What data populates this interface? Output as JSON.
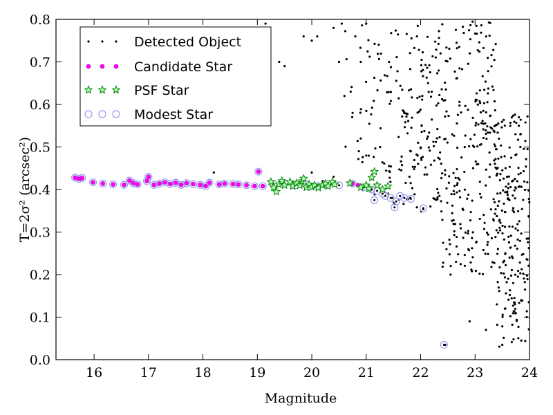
{
  "chart_data": {
    "type": "scatter",
    "xlabel": "Magnitude",
    "ylabel": "T=2σ² (arcsec²)",
    "xlim": [
      15.3,
      24
    ],
    "ylim": [
      0.0,
      0.8
    ],
    "xticks": [
      16,
      17,
      18,
      19,
      20,
      21,
      22,
      23,
      24
    ],
    "yticks": [
      0.0,
      0.1,
      0.2,
      0.3,
      0.4,
      0.5,
      0.6,
      0.7,
      0.8
    ],
    "xtick_labels": [
      "16",
      "17",
      "18",
      "19",
      "20",
      "21",
      "22",
      "23",
      "24"
    ],
    "ytick_labels": [
      "0.0",
      "0.1",
      "0.2",
      "0.3",
      "0.4",
      "0.5",
      "0.6",
      "0.7",
      "0.8"
    ],
    "legend": {
      "position": "top-left",
      "entries": [
        {
          "label": "Detected Object",
          "marker": "dot",
          "color": "#000000"
        },
        {
          "label": "Candidate Star",
          "marker": "circle",
          "color": "#ff00ff"
        },
        {
          "label": "PSF Star",
          "marker": "star",
          "color": "#008000"
        },
        {
          "label": "Modest Star",
          "marker": "hollow-circle",
          "color": "#9999ee"
        }
      ]
    },
    "series": [
      {
        "name": "Modest Star",
        "color": "#9999ee",
        "points": [
          [
            15.65,
            0.428
          ],
          [
            15.72,
            0.425
          ],
          [
            15.78,
            0.427
          ],
          [
            15.98,
            0.417
          ],
          [
            16.16,
            0.414
          ],
          [
            16.35,
            0.412
          ],
          [
            16.55,
            0.411
          ],
          [
            16.65,
            0.421
          ],
          [
            16.72,
            0.415
          ],
          [
            16.8,
            0.412
          ],
          [
            16.97,
            0.42
          ],
          [
            17.0,
            0.43
          ],
          [
            17.1,
            0.411
          ],
          [
            17.2,
            0.414
          ],
          [
            17.3,
            0.417
          ],
          [
            17.4,
            0.413
          ],
          [
            17.5,
            0.416
          ],
          [
            17.6,
            0.411
          ],
          [
            17.7,
            0.415
          ],
          [
            17.82,
            0.413
          ],
          [
            17.95,
            0.411
          ],
          [
            18.05,
            0.408
          ],
          [
            18.12,
            0.416
          ],
          [
            18.3,
            0.412
          ],
          [
            18.4,
            0.414
          ],
          [
            18.55,
            0.413
          ],
          [
            18.65,
            0.412
          ],
          [
            18.8,
            0.41
          ],
          [
            18.95,
            0.408
          ],
          [
            19.02,
            0.442
          ],
          [
            19.1,
            0.408
          ],
          [
            19.3,
            0.413
          ],
          [
            19.5,
            0.415
          ],
          [
            19.7,
            0.41
          ],
          [
            19.9,
            0.412
          ],
          [
            20.1,
            0.408
          ],
          [
            20.3,
            0.413
          ],
          [
            20.5,
            0.41
          ],
          [
            20.75,
            0.414
          ],
          [
            20.95,
            0.405
          ],
          [
            21.1,
            0.4
          ],
          [
            21.2,
            0.397
          ],
          [
            21.3,
            0.39
          ],
          [
            21.35,
            0.385
          ],
          [
            21.45,
            0.38
          ],
          [
            21.55,
            0.372
          ],
          [
            21.62,
            0.385
          ],
          [
            21.7,
            0.38
          ],
          [
            21.15,
            0.375
          ],
          [
            21.52,
            0.358
          ],
          [
            21.82,
            0.378
          ],
          [
            22.05,
            0.356
          ],
          [
            22.43,
            0.035
          ]
        ]
      },
      {
        "name": "Candidate Star",
        "color": "#ff00ff",
        "points": [
          [
            15.65,
            0.428
          ],
          [
            15.72,
            0.425
          ],
          [
            15.78,
            0.427
          ],
          [
            15.98,
            0.417
          ],
          [
            16.16,
            0.414
          ],
          [
            16.35,
            0.412
          ],
          [
            16.55,
            0.411
          ],
          [
            16.65,
            0.421
          ],
          [
            16.72,
            0.415
          ],
          [
            16.8,
            0.412
          ],
          [
            16.97,
            0.42
          ],
          [
            17.0,
            0.43
          ],
          [
            17.1,
            0.411
          ],
          [
            17.2,
            0.414
          ],
          [
            17.3,
            0.417
          ],
          [
            17.4,
            0.413
          ],
          [
            17.5,
            0.416
          ],
          [
            17.6,
            0.411
          ],
          [
            17.7,
            0.415
          ],
          [
            17.82,
            0.413
          ],
          [
            17.95,
            0.411
          ],
          [
            18.05,
            0.408
          ],
          [
            18.12,
            0.416
          ],
          [
            18.3,
            0.412
          ],
          [
            18.4,
            0.414
          ],
          [
            18.55,
            0.413
          ],
          [
            18.65,
            0.412
          ],
          [
            18.8,
            0.41
          ],
          [
            18.95,
            0.408
          ],
          [
            19.02,
            0.442
          ],
          [
            19.1,
            0.408
          ],
          [
            20.75,
            0.414
          ],
          [
            20.85,
            0.41
          ]
        ]
      },
      {
        "name": "PSF Star",
        "color": "#008000",
        "points": [
          [
            19.25,
            0.418
          ],
          [
            19.3,
            0.405
          ],
          [
            19.35,
            0.395
          ],
          [
            19.4,
            0.412
          ],
          [
            19.45,
            0.42
          ],
          [
            19.5,
            0.41
          ],
          [
            19.6,
            0.418
          ],
          [
            19.65,
            0.408
          ],
          [
            19.72,
            0.415
          ],
          [
            19.78,
            0.41
          ],
          [
            19.82,
            0.42
          ],
          [
            19.85,
            0.426
          ],
          [
            19.9,
            0.405
          ],
          [
            19.95,
            0.412
          ],
          [
            20.0,
            0.406
          ],
          [
            20.05,
            0.41
          ],
          [
            20.12,
            0.404
          ],
          [
            20.2,
            0.41
          ],
          [
            20.25,
            0.414
          ],
          [
            20.3,
            0.408
          ],
          [
            20.38,
            0.418
          ],
          [
            20.42,
            0.412
          ],
          [
            20.7,
            0.415
          ],
          [
            20.9,
            0.405
          ],
          [
            21.0,
            0.41
          ],
          [
            21.05,
            0.402
          ],
          [
            21.1,
            0.428
          ],
          [
            21.15,
            0.442
          ],
          [
            21.2,
            0.41
          ],
          [
            21.3,
            0.4
          ],
          [
            21.4,
            0.408
          ]
        ]
      },
      {
        "name": "Detected Object",
        "color": "#000000",
        "generated": true,
        "points": [
          [
            19.15,
            0.79
          ],
          [
            19.4,
            0.7
          ],
          [
            19.5,
            0.69
          ],
          [
            19.85,
            0.76
          ],
          [
            20.0,
            0.75
          ],
          [
            20.1,
            0.76
          ],
          [
            20.4,
            0.78
          ],
          [
            20.55,
            0.79
          ],
          [
            20.8,
            0.76
          ],
          [
            21.0,
            0.79
          ],
          [
            20.5,
            0.7
          ],
          [
            20.9,
            0.7
          ],
          [
            20.2,
            0.42
          ],
          [
            20.4,
            0.43
          ],
          [
            20.0,
            0.44
          ],
          [
            18.2,
            0.44
          ],
          [
            20.6,
            0.62
          ],
          [
            20.75,
            0.58
          ],
          [
            20.9,
            0.52
          ],
          [
            21.0,
            0.48
          ],
          [
            22.45,
            0.035
          ],
          [
            22.9,
            0.09
          ],
          [
            23.2,
            0.07
          ],
          [
            23.5,
            0.035
          ],
          [
            23.85,
            0.045
          ],
          [
            23.95,
            0.1
          ],
          [
            23.4,
            0.13
          ],
          [
            22.65,
            0.23
          ],
          [
            22.55,
            0.2
          ],
          [
            23.7,
            0.18
          ]
        ]
      }
    ]
  }
}
